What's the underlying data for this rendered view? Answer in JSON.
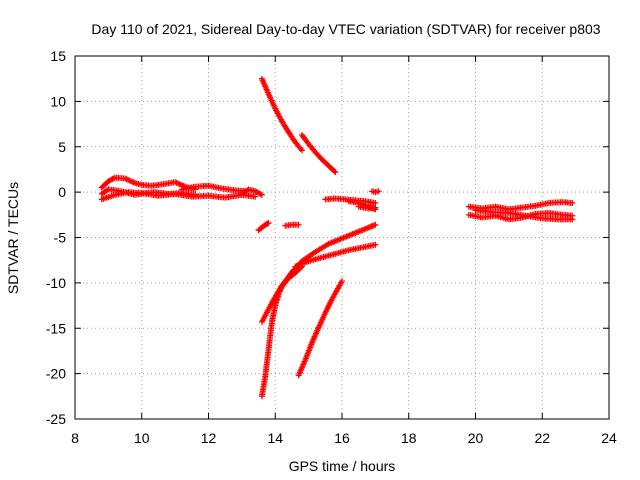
{
  "chart_data": {
    "type": "scatter",
    "title": "Day 110 of 2021, Sidereal Day-to-day VTEC variation (SDTVAR) for receiver p803",
    "xlabel": "GPS time / hours",
    "ylabel": "SDTVAR / TECUs",
    "xlim": [
      8,
      24
    ],
    "ylim": [
      -25,
      15
    ],
    "xticks": [
      "8",
      "10",
      "12",
      "14",
      "16",
      "18",
      "20",
      "22",
      "24"
    ],
    "yticks": [
      "15",
      "10",
      "5",
      "0",
      "-5",
      "-10",
      "-15",
      "-20",
      "-25"
    ],
    "grid": true,
    "marker": "plus",
    "color": "#ff0000",
    "series": [
      {
        "x": [
          8.8,
          9.0,
          9.2,
          9.5,
          9.8,
          10.0,
          10.3,
          10.7,
          11.0,
          11.3,
          11.6
        ],
        "y": [
          0.5,
          1.2,
          1.6,
          1.5,
          1.0,
          0.8,
          0.7,
          0.9,
          1.1,
          0.6,
          0.3
        ]
      },
      {
        "x": [
          8.8,
          9.2,
          9.6,
          10.0,
          10.5,
          11.0,
          11.5,
          12.0,
          12.5,
          13.0,
          13.4
        ],
        "y": [
          -0.8,
          -0.3,
          0.0,
          -0.1,
          -0.4,
          -0.2,
          -0.5,
          -0.4,
          -0.6,
          -0.3,
          -0.5
        ]
      },
      {
        "x": [
          11.2,
          11.6,
          12.0,
          12.4,
          12.8,
          13.1
        ],
        "y": [
          0.3,
          0.6,
          0.7,
          0.4,
          0.2,
          0.1
        ]
      },
      {
        "x": [
          8.8,
          9.0,
          9.2,
          9.5,
          9.8,
          10.1,
          10.4,
          10.8,
          11.2,
          11.6
        ],
        "y": [
          -0.2,
          0.3,
          0.2,
          0.0,
          -0.3,
          -0.1,
          0.0,
          -0.2,
          -0.1,
          -0.3
        ]
      },
      {
        "x": [
          13.0,
          13.2,
          13.4,
          13.6
        ],
        "y": [
          -0.2,
          0.3,
          0.1,
          -0.3
        ]
      },
      {
        "x": [
          13.6,
          13.8,
          14.0,
          14.2,
          14.4,
          14.6,
          14.8
        ],
        "y": [
          12.5,
          10.8,
          9.2,
          7.8,
          6.6,
          5.5,
          4.6
        ]
      },
      {
        "x": [
          14.8,
          15.0,
          15.2,
          15.4,
          15.6,
          15.8
        ],
        "y": [
          6.3,
          5.3,
          4.4,
          3.6,
          2.9,
          2.2
        ]
      },
      {
        "x": [
          13.5,
          13.6,
          13.7,
          13.8
        ],
        "y": [
          -4.2,
          -3.9,
          -3.6,
          -3.4
        ]
      },
      {
        "x": [
          14.3,
          14.5,
          14.7
        ],
        "y": [
          -3.7,
          -3.6,
          -3.6
        ]
      },
      {
        "x": [
          15.5,
          15.8,
          16.1,
          16.4,
          16.7,
          17.0
        ],
        "y": [
          -0.8,
          -0.7,
          -0.8,
          -0.9,
          -1.0,
          -1.2
        ]
      },
      {
        "x": [
          16.2,
          16.5,
          16.8,
          17.0
        ],
        "y": [
          -1.0,
          -1.2,
          -1.6,
          -1.9
        ]
      },
      {
        "x": [
          16.5,
          16.8,
          17.0
        ],
        "y": [
          -1.6,
          -1.8,
          -1.7
        ]
      },
      {
        "x": [
          16.9,
          17.0,
          17.1
        ],
        "y": [
          0.1,
          0.0,
          0.1
        ]
      },
      {
        "x": [
          13.6,
          13.9,
          14.2,
          14.5,
          14.8,
          15.2,
          15.6,
          16.0,
          16.4,
          16.8,
          17.0
        ],
        "y": [
          -14.3,
          -12.2,
          -10.3,
          -8.8,
          -7.6,
          -6.6,
          -5.7,
          -5.1,
          -4.5,
          -3.9,
          -3.6
        ]
      },
      {
        "x": [
          14.6,
          15.0,
          15.4,
          15.8,
          16.2,
          16.6,
          17.0
        ],
        "y": [
          -8.2,
          -7.6,
          -7.2,
          -6.8,
          -6.4,
          -6.1,
          -5.8
        ]
      },
      {
        "x": [
          13.6,
          13.7,
          13.8,
          13.9,
          14.0,
          14.1,
          14.2,
          14.4,
          14.6,
          14.8
        ],
        "y": [
          -22.5,
          -20.3,
          -17.3,
          -14.3,
          -12.5,
          -11.3,
          -10.4,
          -9.5,
          -8.9,
          -8.2
        ]
      },
      {
        "x": [
          14.7,
          14.9,
          15.1,
          15.3,
          15.5,
          15.7,
          16.0
        ],
        "y": [
          -20.2,
          -18.5,
          -16.6,
          -14.9,
          -13.3,
          -11.8,
          -9.8
        ]
      },
      {
        "x": [
          19.8,
          20.2,
          20.6,
          21.0,
          21.4,
          21.8,
          22.2,
          22.6,
          22.9
        ],
        "y": [
          -1.6,
          -1.8,
          -1.6,
          -1.9,
          -1.7,
          -1.5,
          -1.2,
          -1.1,
          -1.2
        ]
      },
      {
        "x": [
          19.8,
          20.2,
          20.6,
          21.0,
          21.4,
          21.8,
          22.2,
          22.6,
          22.9
        ],
        "y": [
          -2.5,
          -2.8,
          -2.6,
          -3.0,
          -2.8,
          -2.4,
          -2.3,
          -2.5,
          -2.6
        ]
      },
      {
        "x": [
          20.0,
          20.5,
          21.0,
          21.5,
          22.0,
          22.5,
          22.9
        ],
        "y": [
          -2.0,
          -2.2,
          -2.3,
          -2.6,
          -2.9,
          -3.0,
          -3.0
        ]
      }
    ]
  }
}
